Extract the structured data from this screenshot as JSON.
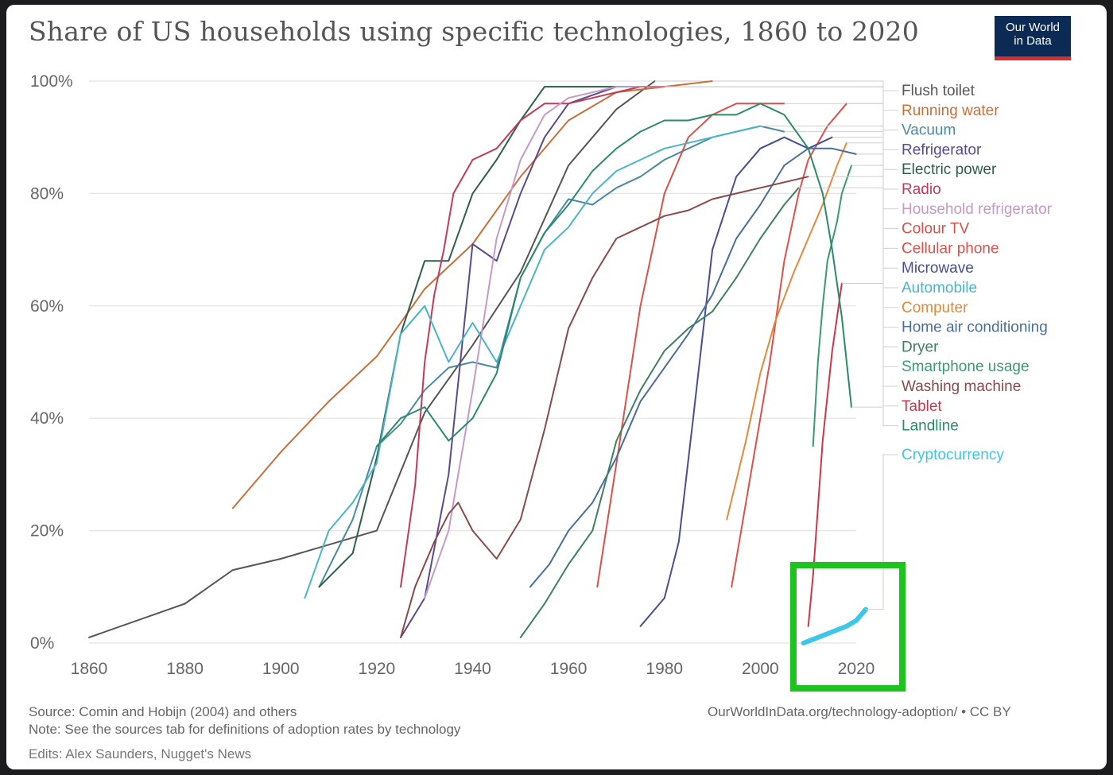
{
  "header": {
    "title": "Share of US households using specific technologies, 1860 to 2020",
    "logo_line1": "Our World",
    "logo_line2": "in Data"
  },
  "footer": {
    "source": "Source: Comin and Hobijn (2004) and others",
    "note": "Note: See the sources tab for definitions of adoption rates by technology",
    "edits": "Edits: Alex Saunders, Nugget's News",
    "credit": "OurWorldInData.org/technology-adoption/ • CC BY"
  },
  "colors": {
    "highlight_box": "#1ec41e",
    "crypto": "#3cc6e8",
    "grid": "#e4e4e4"
  },
  "chart_data": {
    "type": "line",
    "title": "Share of US households using specific technologies, 1860 to 2020",
    "xlim": [
      1860,
      2027
    ],
    "ylim": [
      0,
      100
    ],
    "x_ticks": [
      1860,
      1880,
      1900,
      1920,
      1940,
      1960,
      1980,
      2000,
      2020
    ],
    "x_tick_labels": [
      "1860",
      "1880",
      "1900",
      "1920",
      "1940",
      "1960",
      "1980",
      "2000",
      "2020"
    ],
    "y_ticks": [
      0,
      20,
      40,
      60,
      80,
      100
    ],
    "y_tick_labels": [
      "0%",
      "20%",
      "40%",
      "60%",
      "80%",
      "100%"
    ],
    "grid": "horizontal",
    "legend_position": "right",
    "series": [
      {
        "name": "Flush toilet",
        "color": "#555555",
        "points": [
          [
            1860,
            1
          ],
          [
            1880,
            7
          ],
          [
            1890,
            13
          ],
          [
            1900,
            15
          ],
          [
            1920,
            20
          ],
          [
            1930,
            41
          ],
          [
            1940,
            53
          ],
          [
            1950,
            66
          ],
          [
            1960,
            85
          ],
          [
            1970,
            95
          ],
          [
            1978,
            100
          ]
        ]
      },
      {
        "name": "Running water",
        "color": "#c8703a",
        "points": [
          [
            1890,
            24
          ],
          [
            1900,
            34
          ],
          [
            1910,
            43
          ],
          [
            1920,
            51
          ],
          [
            1930,
            63
          ],
          [
            1940,
            71
          ],
          [
            1950,
            83
          ],
          [
            1960,
            93
          ],
          [
            1970,
            98
          ],
          [
            1980,
            99
          ],
          [
            1990,
            100
          ]
        ]
      },
      {
        "name": "Vacuum",
        "color": "#4a8aa4",
        "points": [
          [
            1908,
            10
          ],
          [
            1915,
            22
          ],
          [
            1920,
            35
          ],
          [
            1925,
            39
          ],
          [
            1930,
            45
          ],
          [
            1935,
            49
          ],
          [
            1940,
            50
          ],
          [
            1945,
            49
          ],
          [
            1950,
            65
          ],
          [
            1955,
            73
          ],
          [
            1960,
            79
          ],
          [
            1965,
            78
          ],
          [
            1970,
            81
          ],
          [
            1975,
            83
          ],
          [
            1980,
            86
          ],
          [
            1985,
            88
          ],
          [
            1990,
            90
          ],
          [
            1995,
            91
          ],
          [
            2000,
            92
          ],
          [
            2005,
            91
          ]
        ]
      },
      {
        "name": "Refrigerator",
        "color": "#5a4a8e",
        "points": [
          [
            1925,
            1
          ],
          [
            1930,
            8
          ],
          [
            1935,
            30
          ],
          [
            1940,
            71
          ],
          [
            1945,
            68
          ],
          [
            1950,
            80
          ],
          [
            1955,
            90
          ],
          [
            1960,
            96
          ],
          [
            1970,
            99
          ],
          [
            1980,
            99
          ]
        ]
      },
      {
        "name": "Electric power",
        "color": "#2f5e4a",
        "points": [
          [
            1908,
            10
          ],
          [
            1915,
            16
          ],
          [
            1920,
            33
          ],
          [
            1925,
            55
          ],
          [
            1930,
            68
          ],
          [
            1935,
            68
          ],
          [
            1940,
            80
          ],
          [
            1945,
            86
          ],
          [
            1950,
            93
          ],
          [
            1955,
            99
          ],
          [
            1960,
            99
          ],
          [
            1970,
            99
          ]
        ]
      },
      {
        "name": "Radio",
        "color": "#c23b58",
        "points": [
          [
            1925,
            10
          ],
          [
            1928,
            28
          ],
          [
            1930,
            50
          ],
          [
            1932,
            62
          ],
          [
            1934,
            70
          ],
          [
            1936,
            80
          ],
          [
            1940,
            86
          ],
          [
            1945,
            88
          ],
          [
            1950,
            93
          ],
          [
            1955,
            96
          ],
          [
            1960,
            96
          ],
          [
            1965,
            97
          ],
          [
            1970,
            98
          ],
          [
            1975,
            99
          ],
          [
            1980,
            99
          ]
        ]
      },
      {
        "name": "Household refrigerator",
        "color": "#c49ac8",
        "points": [
          [
            1930,
            8
          ],
          [
            1935,
            20
          ],
          [
            1940,
            45
          ],
          [
            1945,
            72
          ],
          [
            1950,
            86
          ],
          [
            1955,
            94
          ],
          [
            1960,
            97
          ],
          [
            1970,
            99
          ]
        ]
      },
      {
        "name": "Colour TV",
        "color": "#d9524a",
        "points": [
          [
            1966,
            10
          ],
          [
            1970,
            32
          ],
          [
            1975,
            60
          ],
          [
            1980,
            80
          ],
          [
            1985,
            90
          ],
          [
            1990,
            94
          ],
          [
            1995,
            96
          ],
          [
            2000,
            96
          ],
          [
            2005,
            96
          ]
        ]
      },
      {
        "name": "Cellular phone",
        "color": "#e0504a",
        "points": [
          [
            1994,
            10
          ],
          [
            1998,
            30
          ],
          [
            2002,
            50
          ],
          [
            2005,
            68
          ],
          [
            2008,
            80
          ],
          [
            2010,
            86
          ],
          [
            2014,
            92
          ],
          [
            2018,
            96
          ]
        ]
      },
      {
        "name": "Microwave",
        "color": "#4a4e90",
        "points": [
          [
            1975,
            3
          ],
          [
            1980,
            8
          ],
          [
            1983,
            18
          ],
          [
            1986,
            40
          ],
          [
            1990,
            70
          ],
          [
            1995,
            83
          ],
          [
            2000,
            88
          ],
          [
            2005,
            90
          ],
          [
            2010,
            88
          ],
          [
            2015,
            90
          ]
        ]
      },
      {
        "name": "Automobile",
        "color": "#4ab4c8",
        "points": [
          [
            1905,
            8
          ],
          [
            1910,
            20
          ],
          [
            1915,
            25
          ],
          [
            1920,
            32
          ],
          [
            1925,
            55
          ],
          [
            1930,
            60
          ],
          [
            1935,
            50
          ],
          [
            1940,
            57
          ],
          [
            1945,
            50
          ],
          [
            1950,
            60
          ],
          [
            1955,
            70
          ],
          [
            1960,
            74
          ],
          [
            1965,
            80
          ],
          [
            1970,
            84
          ],
          [
            1975,
            86
          ],
          [
            1980,
            88
          ],
          [
            1985,
            89
          ],
          [
            1990,
            90
          ],
          [
            1995,
            91
          ],
          [
            2000,
            92
          ]
        ]
      },
      {
        "name": "Computer",
        "color": "#e08a3c",
        "points": [
          [
            1993,
            22
          ],
          [
            1997,
            36
          ],
          [
            2000,
            48
          ],
          [
            2003,
            57
          ],
          [
            2007,
            66
          ],
          [
            2010,
            72
          ],
          [
            2013,
            78
          ],
          [
            2016,
            85
          ],
          [
            2018,
            89
          ]
        ]
      },
      {
        "name": "Home air conditioning",
        "color": "#4a6e9a",
        "points": [
          [
            1952,
            10
          ],
          [
            1956,
            14
          ],
          [
            1960,
            20
          ],
          [
            1965,
            25
          ],
          [
            1970,
            33
          ],
          [
            1975,
            43
          ],
          [
            1980,
            49
          ],
          [
            1985,
            55
          ],
          [
            1990,
            62
          ],
          [
            1995,
            72
          ],
          [
            2000,
            78
          ],
          [
            2005,
            85
          ],
          [
            2010,
            88
          ],
          [
            2015,
            88
          ],
          [
            2020,
            87
          ]
        ]
      },
      {
        "name": "Dryer",
        "color": "#3e8060",
        "points": [
          [
            1950,
            1
          ],
          [
            1955,
            7
          ],
          [
            1960,
            14
          ],
          [
            1965,
            20
          ],
          [
            1970,
            36
          ],
          [
            1975,
            45
          ],
          [
            1980,
            52
          ],
          [
            1985,
            56
          ],
          [
            1990,
            59
          ],
          [
            1995,
            65
          ],
          [
            2000,
            72
          ],
          [
            2005,
            78
          ],
          [
            2008,
            81
          ]
        ]
      },
      {
        "name": "Smartphone usage",
        "color": "#3a9a70",
        "points": [
          [
            2011,
            35
          ],
          [
            2012,
            50
          ],
          [
            2013,
            60
          ],
          [
            2014,
            68
          ],
          [
            2016,
            75
          ],
          [
            2017,
            80
          ],
          [
            2019,
            85
          ]
        ]
      },
      {
        "name": "Washing machine",
        "color": "#8a4a4a",
        "points": [
          [
            1925,
            1
          ],
          [
            1928,
            10
          ],
          [
            1930,
            14
          ],
          [
            1932,
            18
          ],
          [
            1935,
            23
          ],
          [
            1937,
            25
          ],
          [
            1940,
            20
          ],
          [
            1945,
            15
          ],
          [
            1950,
            22
          ],
          [
            1955,
            38
          ],
          [
            1960,
            56
          ],
          [
            1965,
            65
          ],
          [
            1970,
            72
          ],
          [
            1975,
            74
          ],
          [
            1980,
            76
          ],
          [
            1985,
            77
          ],
          [
            1990,
            79
          ],
          [
            1995,
            80
          ],
          [
            2000,
            81
          ],
          [
            2005,
            82
          ],
          [
            2010,
            83
          ]
        ]
      },
      {
        "name": "Tablet",
        "color": "#d0364a",
        "points": [
          [
            2010,
            3
          ],
          [
            2011,
            12
          ],
          [
            2012,
            24
          ],
          [
            2013,
            36
          ],
          [
            2014,
            44
          ],
          [
            2015,
            52
          ],
          [
            2016,
            58
          ],
          [
            2017,
            64
          ]
        ]
      },
      {
        "name": "Landline",
        "color": "#2a8a6a",
        "points": [
          [
            1920,
            35
          ],
          [
            1925,
            40
          ],
          [
            1930,
            42
          ],
          [
            1935,
            36
          ],
          [
            1940,
            40
          ],
          [
            1945,
            48
          ],
          [
            1950,
            65
          ],
          [
            1955,
            73
          ],
          [
            1960,
            78
          ],
          [
            1965,
            84
          ],
          [
            1970,
            88
          ],
          [
            1975,
            91
          ],
          [
            1980,
            93
          ],
          [
            1985,
            93
          ],
          [
            1990,
            94
          ],
          [
            1995,
            94
          ],
          [
            2000,
            96
          ],
          [
            2005,
            94
          ],
          [
            2010,
            88
          ],
          [
            2013,
            80
          ],
          [
            2015,
            70
          ],
          [
            2017,
            58
          ],
          [
            2019,
            42
          ]
        ]
      },
      {
        "name": "Cryptocurrency",
        "color": "#3cc6e8",
        "points": [
          [
            2009,
            0
          ],
          [
            2012,
            1
          ],
          [
            2015,
            2
          ],
          [
            2018,
            3
          ],
          [
            2020,
            4
          ],
          [
            2022,
            6
          ]
        ]
      }
    ]
  }
}
